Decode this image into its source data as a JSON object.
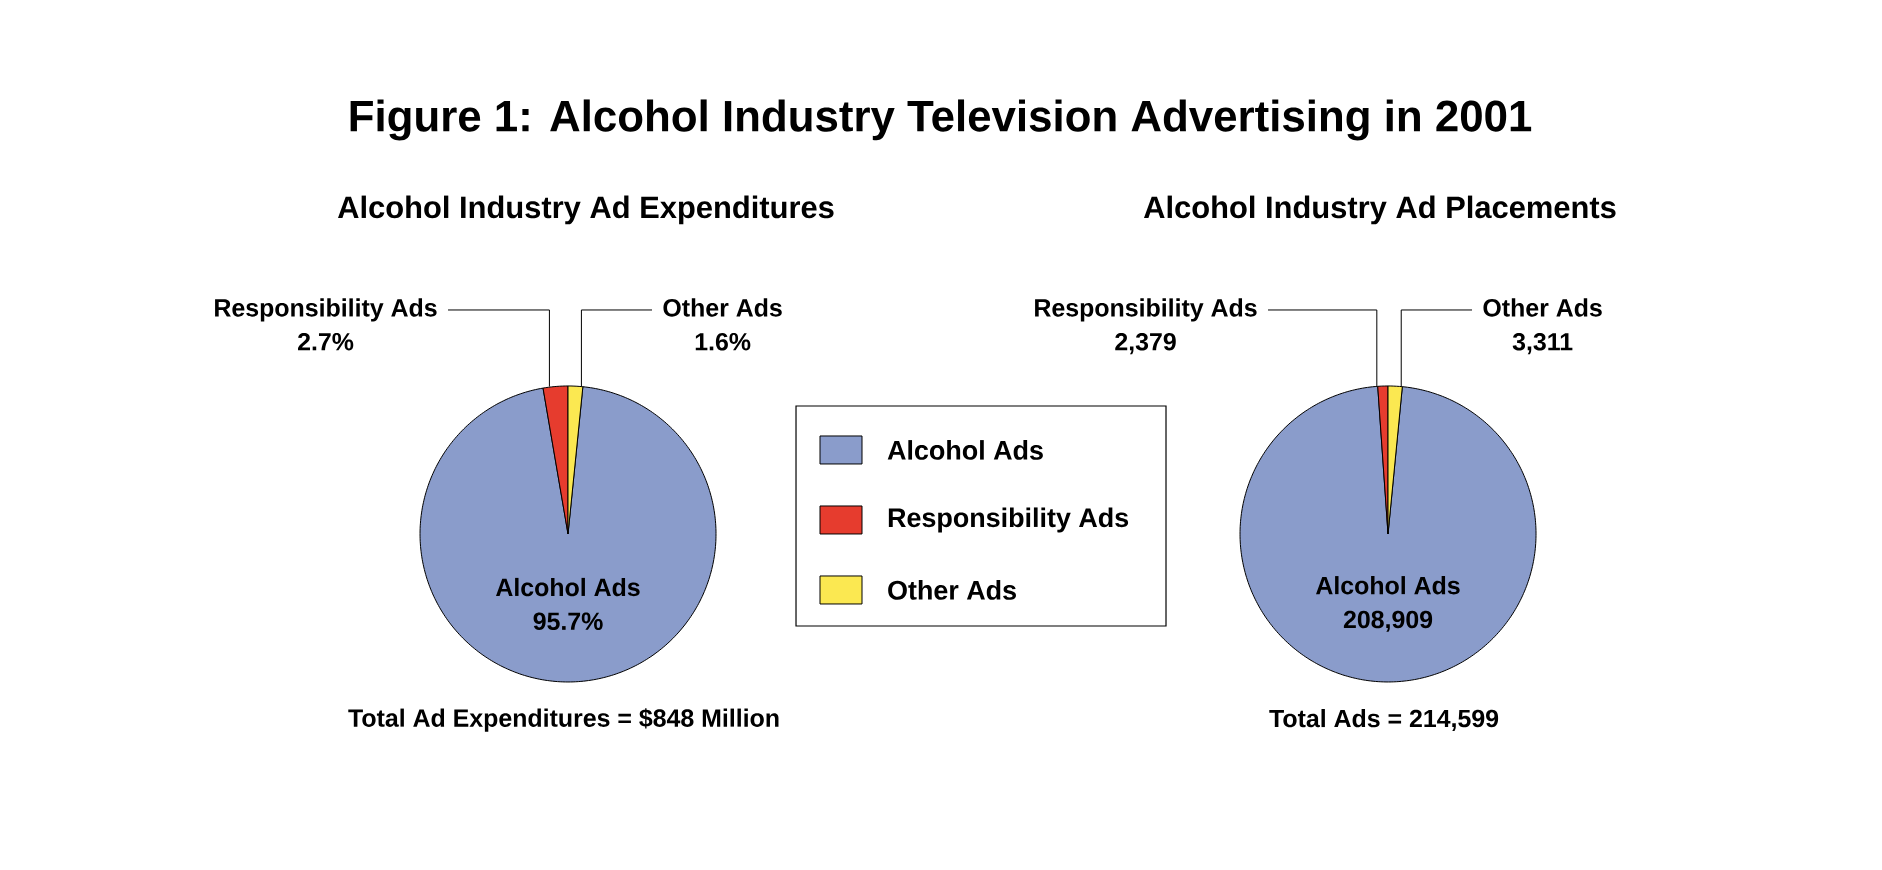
{
  "chart_data": [
    {
      "type": "pie",
      "title": "Figure 1:  Alcohol Industry Television Advertising in 2001",
      "subtitle": "Alcohol Industry Ad Expenditures",
      "categories": [
        "Alcohol Ads",
        "Responsibility Ads",
        "Other Ads"
      ],
      "values": [
        95.7,
        2.7,
        1.6
      ],
      "colors": [
        "#8a9ccb",
        "#e63c2e",
        "#fbe851"
      ],
      "value_labels": [
        "95.7%",
        "2.7%",
        "1.6%"
      ],
      "legend": "right",
      "annotations": [
        "Total Ad Expenditures = $848 Million"
      ]
    },
    {
      "type": "pie",
      "title": "Alcohol Industry Ad Placements",
      "categories": [
        "Alcohol Ads",
        "Responsibility Ads",
        "Other Ads"
      ],
      "values": [
        208909,
        2379,
        3311
      ],
      "colors": [
        "#8a9ccb",
        "#e63c2e",
        "#fbe851"
      ],
      "value_labels": [
        "208,909",
        "2,379",
        "3,311"
      ],
      "annotations": [
        "Total Ads = 214,599"
      ]
    }
  ]
}
